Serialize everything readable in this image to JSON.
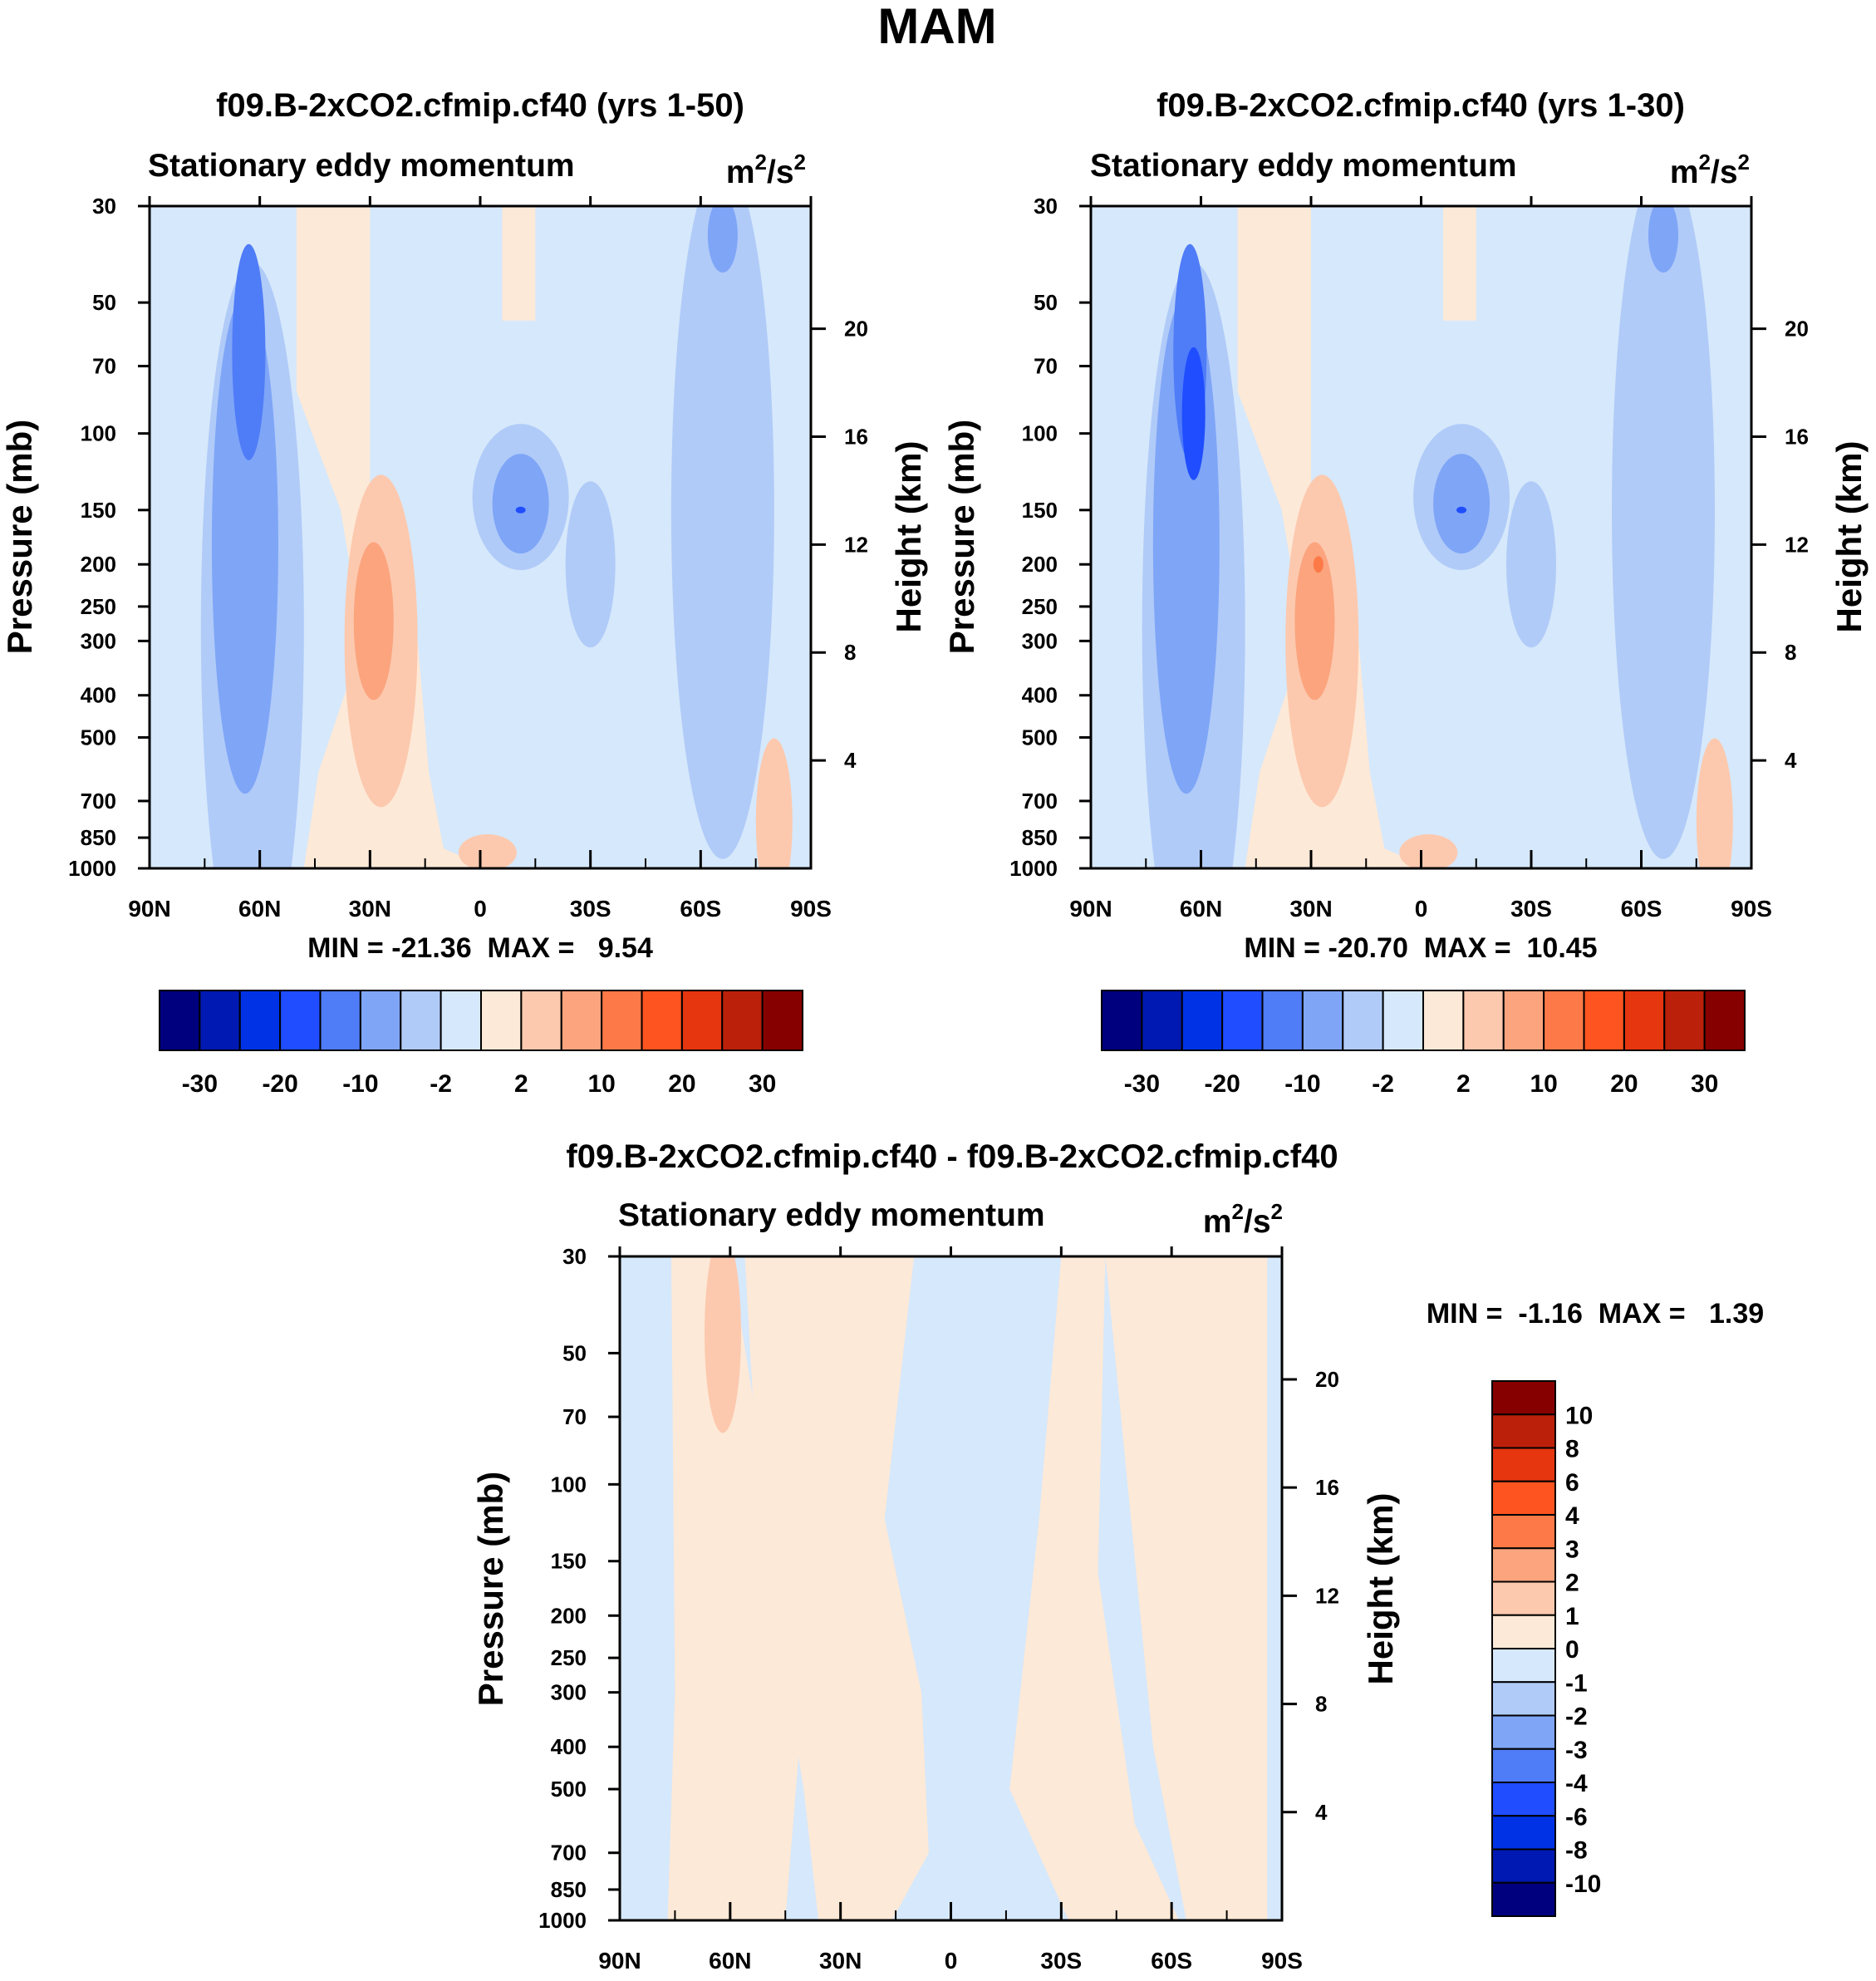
{
  "figure": {
    "title": "MAM"
  },
  "chart_data": [
    {
      "type": "heatmap",
      "title": "f09.B-2xCO2.cfmip.cf40 (yrs 1-50)",
      "subtitle": "Stationary eddy momentum",
      "units": "m²/s²",
      "units_base": "m",
      "units_exp1": "2",
      "units_mid": "/s",
      "units_exp2": "2",
      "ylabel": "Pressure (mb)",
      "y2label": "Height (km)",
      "x_ticks": [
        "90N",
        "60N",
        "30N",
        "0",
        "30S",
        "60S",
        "90S"
      ],
      "y_ticks": [
        "30",
        "50",
        "70",
        "100",
        "150",
        "200",
        "250",
        "300",
        "400",
        "500",
        "700",
        "850",
        "1000"
      ],
      "y2_ticks": [
        "20",
        "16",
        "12",
        "8",
        "4"
      ],
      "ylim": [
        1000,
        30
      ],
      "xlim": [
        "90N",
        "90S"
      ],
      "stats": "MIN = -21.36  MAX =   9.54",
      "min": -21.36,
      "max": 9.54,
      "features": [
        {
          "lat": 63,
          "p": 60,
          "value": -21
        },
        {
          "lat": -12,
          "p": 140,
          "value": -12
        },
        {
          "lat": 28,
          "p": 250,
          "value": 9.5
        },
        {
          "lat": -67,
          "p": 35,
          "value": -6
        }
      ]
    },
    {
      "type": "heatmap",
      "title": "f09.B-2xCO2.cfmip.cf40 (yrs 1-30)",
      "subtitle": "Stationary eddy momentum",
      "units": "m²/s²",
      "units_base": "m",
      "units_exp1": "2",
      "units_mid": "/s",
      "units_exp2": "2",
      "ylabel": "Pressure (mb)",
      "y2label": "Height (km)",
      "x_ticks": [
        "90N",
        "60N",
        "30N",
        "0",
        "30S",
        "60S",
        "90S"
      ],
      "y_ticks": [
        "30",
        "50",
        "70",
        "100",
        "150",
        "200",
        "250",
        "300",
        "400",
        "500",
        "700",
        "850",
        "1000"
      ],
      "y2_ticks": [
        "20",
        "16",
        "12",
        "8",
        "4"
      ],
      "ylim": [
        1000,
        30
      ],
      "xlim": [
        "90N",
        "90S"
      ],
      "stats": "MIN = -20.70  MAX =  10.45",
      "min": -20.7,
      "max": 10.45,
      "features": [
        {
          "lat": 62,
          "p": 60,
          "value": -20.7
        },
        {
          "lat": -12,
          "p": 140,
          "value": -13
        },
        {
          "lat": 28,
          "p": 200,
          "value": 10.45
        },
        {
          "lat": -67,
          "p": 35,
          "value": -6
        }
      ]
    },
    {
      "type": "heatmap",
      "title": "f09.B-2xCO2.cfmip.cf40 - f09.B-2xCO2.cfmip.cf40",
      "subtitle": "Stationary eddy momentum",
      "units": "m²/s²",
      "units_base": "m",
      "units_exp1": "2",
      "units_mid": "/s",
      "units_exp2": "2",
      "ylabel": "Pressure (mb)",
      "y2label": "Height (km)",
      "x_ticks": [
        "90N",
        "60N",
        "30N",
        "0",
        "30S",
        "60S",
        "90S"
      ],
      "y_ticks": [
        "30",
        "50",
        "70",
        "100",
        "150",
        "200",
        "250",
        "300",
        "400",
        "500",
        "700",
        "850",
        "1000"
      ],
      "y2_ticks": [
        "20",
        "16",
        "12",
        "8",
        "4"
      ],
      "ylim": [
        1000,
        30
      ],
      "xlim": [
        "90N",
        "90S"
      ],
      "stats": "MIN =  -1.16  MAX =   1.39",
      "min": -1.16,
      "max": 1.39,
      "features": [
        {
          "lat": 62,
          "p": 45,
          "value": 1.39
        }
      ]
    }
  ],
  "colorbars": {
    "horizontal": {
      "labels": [
        "-30",
        "-20",
        "-10",
        "-2",
        "2",
        "10",
        "20",
        "30"
      ]
    },
    "vertical": {
      "labels": [
        "10",
        "8",
        "6",
        "4",
        "3",
        "2",
        "1",
        "0",
        "-1",
        "-2",
        "-3",
        "-4",
        "-6",
        "-8",
        "-10"
      ]
    },
    "colors": [
      "#00007f",
      "#0019b2",
      "#0032e5",
      "#1f4dff",
      "#4f7cf7",
      "#7fa5f7",
      "#b0cbf8",
      "#d6e8fb",
      "#fde9d7",
      "#fcc9ae",
      "#fba47e",
      "#fd7a48",
      "#fe541f",
      "#e53610",
      "#bb200a",
      "#870000"
    ]
  }
}
